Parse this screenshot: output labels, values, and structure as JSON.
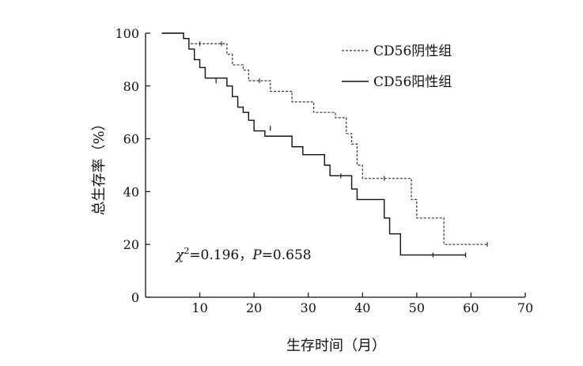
{
  "chart_data": {
    "type": "line",
    "subtype": "kaplan-meier step survival curve",
    "xlabel": "生存时间（月）",
    "ylabel": "总生存率（%）",
    "xlim": [
      0,
      70
    ],
    "ylim": [
      0,
      100
    ],
    "xticks": [
      "10",
      "20",
      "30",
      "40",
      "50",
      "60",
      "70"
    ],
    "yticks": [
      "0",
      "20",
      "40",
      "60",
      "80",
      "100"
    ],
    "grid": false,
    "legend_position": "top-right",
    "annotation": {
      "chi_symbol": "χ",
      "chi_sup": "2",
      "chi_value": "=0.196，",
      "p_symbol": "P",
      "p_value": "=0.658"
    },
    "series": [
      {
        "name": "CD56阴性组",
        "style": "dashed",
        "color": "#333333",
        "steps": [
          [
            4,
            100
          ],
          [
            7,
            98
          ],
          [
            8,
            96
          ],
          [
            15,
            92
          ],
          [
            16,
            88
          ],
          [
            18,
            86
          ],
          [
            19,
            82
          ],
          [
            23,
            78
          ],
          [
            27,
            74
          ],
          [
            31,
            70
          ],
          [
            35,
            68
          ],
          [
            37,
            62
          ],
          [
            38,
            58
          ],
          [
            39,
            50
          ],
          [
            40,
            45
          ],
          [
            49,
            37
          ],
          [
            50,
            30
          ],
          [
            55,
            20
          ],
          [
            63,
            20
          ]
        ],
        "censor_marks": [
          [
            10,
            96
          ],
          [
            14,
            96
          ],
          [
            21,
            82
          ],
          [
            44,
            45
          ],
          [
            63,
            20
          ]
        ]
      },
      {
        "name": "CD56阳性组",
        "style": "solid",
        "color": "#111111",
        "steps": [
          [
            4,
            100
          ],
          [
            7,
            98
          ],
          [
            8,
            94
          ],
          [
            9,
            90
          ],
          [
            10,
            87
          ],
          [
            11,
            83
          ],
          [
            15,
            80
          ],
          [
            16,
            76
          ],
          [
            17,
            72
          ],
          [
            18,
            70
          ],
          [
            19,
            67
          ],
          [
            20,
            63
          ],
          [
            22,
            61
          ],
          [
            27,
            57
          ],
          [
            29,
            54
          ],
          [
            33,
            50
          ],
          [
            34,
            46
          ],
          [
            38,
            41
          ],
          [
            39,
            37
          ],
          [
            44,
            30
          ],
          [
            45,
            24
          ],
          [
            47,
            16
          ],
          [
            59,
            16
          ]
        ],
        "censor_marks": [
          [
            13,
            82
          ],
          [
            23,
            64
          ],
          [
            36,
            46
          ],
          [
            53,
            16
          ],
          [
            59,
            16
          ]
        ]
      }
    ]
  }
}
